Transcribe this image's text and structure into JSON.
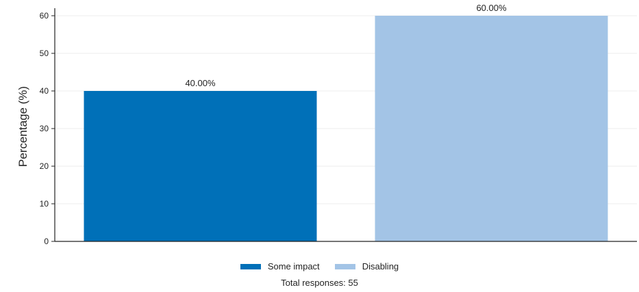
{
  "chart_data": {
    "type": "bar",
    "categories": [
      "Some impact",
      "Disabling"
    ],
    "values": [
      40,
      60
    ],
    "data_labels": [
      "40.00%",
      "60.00%"
    ],
    "colors": [
      "#0070b8",
      "#a3c4e6"
    ],
    "ylabel": "Percentage (%)",
    "xlabel": "",
    "ylim": [
      0,
      62
    ],
    "yticks": [
      0,
      10,
      20,
      30,
      40,
      50,
      60
    ],
    "grid": true,
    "legend_position": "bottom-center",
    "legend": [
      "Some impact",
      "Disabling"
    ],
    "footnote": "Total responses: 55"
  }
}
